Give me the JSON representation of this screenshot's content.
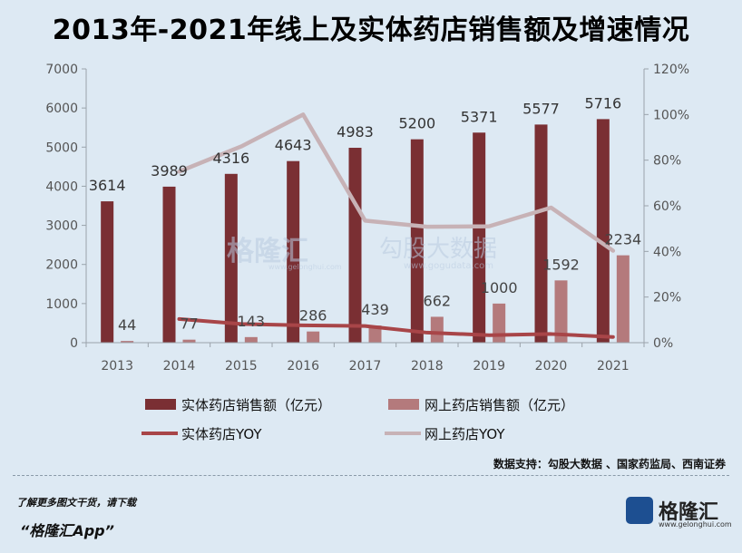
{
  "title": "2013年-2021年线上及实体药店销售额及增速情况",
  "source": "数据支持：勾股大数据 、国家药监局、西南证券",
  "promo": {
    "line1": "了解更多图文干货，请下载",
    "line2": "“格隆汇App”"
  },
  "logo": {
    "name": "格隆汇",
    "url_text": "www.gelonghui.com"
  },
  "watermarks": {
    "gelonghui": "格隆汇",
    "gelonghui_url": "www.gelonghui.com",
    "gugu": "勾股大数据",
    "gugu_url": "www.gogudata.com"
  },
  "colors": {
    "physical": "#7a2f33",
    "online": "#b47a7c",
    "physical_yoy": "#a84548",
    "online_yoy": "#c7b2b6",
    "background": "#dde9f3"
  },
  "chart_data": {
    "type": "bar",
    "categories": [
      "2013",
      "2014",
      "2015",
      "2016",
      "2017",
      "2018",
      "2019",
      "2020",
      "2021"
    ],
    "y_left": {
      "ticks": [
        "0",
        "1000",
        "2000",
        "3000",
        "4000",
        "5000",
        "6000",
        "7000"
      ],
      "ylim": [
        0,
        7000
      ]
    },
    "y_right": {
      "ticks": [
        "0%",
        "20%",
        "40%",
        "60%",
        "80%",
        "100%",
        "120%"
      ],
      "ylim": [
        0,
        120
      ]
    },
    "series": [
      {
        "name": "实体药店销售额（亿元）",
        "type": "bar",
        "axis": "left",
        "values": [
          3614,
          3989,
          4316,
          4643,
          4983,
          5200,
          5371,
          5577,
          5716
        ],
        "labels": [
          "3614",
          "3989",
          "4316",
          "4643",
          "4983",
          "5200",
          "5371",
          "5577",
          "5716"
        ]
      },
      {
        "name": "网上药店销售额（亿元）",
        "type": "bar",
        "axis": "left",
        "values": [
          44,
          77,
          143,
          286,
          439,
          662,
          1000,
          1592,
          2234
        ],
        "labels": [
          "44",
          "77",
          "143",
          "286",
          "439",
          "662",
          "1000",
          "1592",
          "2234"
        ]
      },
      {
        "name": "实体药店YOY",
        "type": "line",
        "axis": "right",
        "x": [
          "2014",
          "2015",
          "2016",
          "2017",
          "2018",
          "2019",
          "2020",
          "2021"
        ],
        "values": [
          10.4,
          8.2,
          7.6,
          7.3,
          4.4,
          3.3,
          3.8,
          2.5
        ]
      },
      {
        "name": "网上药店YOY",
        "type": "line",
        "axis": "right",
        "x": [
          "2014",
          "2015",
          "2016",
          "2017",
          "2018",
          "2019",
          "2020",
          "2021"
        ],
        "values": [
          75,
          86,
          100,
          53.5,
          50.8,
          51,
          59.2,
          40.3
        ]
      }
    ],
    "legend": [
      "实体药店销售额（亿元）",
      "网上药店销售额（亿元）",
      "实体药店YOY",
      "网上药店YOY"
    ],
    "legend_position": "bottom"
  }
}
